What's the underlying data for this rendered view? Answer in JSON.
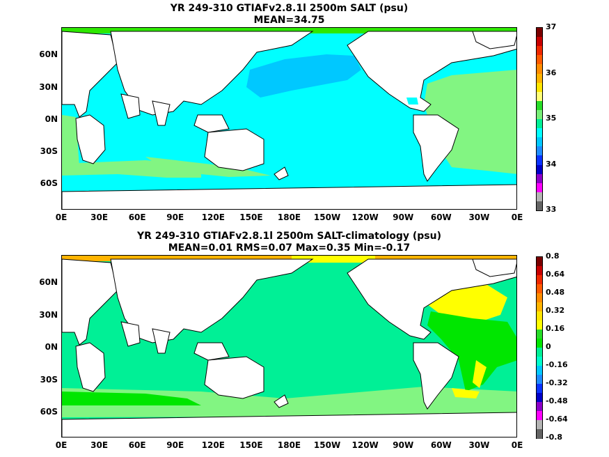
{
  "panels": [
    {
      "title_line1": "YR 249-310 GTIAFv2.8.1l 2500m SALT (psu)",
      "title_line2": "MEAN=34.75",
      "colorbar": {
        "labels": [
          "37",
          "36",
          "35",
          "34",
          "33"
        ],
        "colors": [
          "#7a0000",
          "#c80000",
          "#f02800",
          "#ff5a00",
          "#ff8c00",
          "#ffb400",
          "#ffe600",
          "#ffff78",
          "#28dc28",
          "#78f078",
          "#00f096",
          "#00ffff",
          "#00c8ff",
          "#1e8cff",
          "#0a32ff",
          "#0000c8",
          "#8c00c8",
          "#ff00ff",
          "#b4b4b4",
          "#646464"
        ]
      },
      "palette": {
        "land": "#ffffff",
        "high": "#82f582",
        "mid": "#00ffff",
        "low": "#00c8ff",
        "ice": "#2ee800"
      }
    },
    {
      "title_line1": "YR 249-310 GTIAFv2.8.1l 2500m SALT-climatology (psu)",
      "title_line2": "MEAN=0.01   RMS=0.07   Max=0.35   Min=-0.17",
      "colorbar": {
        "labels": [
          "0.8",
          "0.64",
          "0.48",
          "0.32",
          "0.16",
          "0",
          "-0.16",
          "-0.32",
          "-0.48",
          "-0.64",
          "-0.8"
        ],
        "colors": [
          "#7a0000",
          "#c80000",
          "#f02800",
          "#ff5a00",
          "#ff8c00",
          "#ffb400",
          "#ffe600",
          "#ffff00",
          "#28dc28",
          "#00e600",
          "#00f096",
          "#00ffcc",
          "#00c8ff",
          "#1e8cff",
          "#0a32ff",
          "#0000c8",
          "#8c00c8",
          "#ff00ff",
          "#b4b4b4",
          "#646464"
        ]
      },
      "palette": {
        "land": "#ffffff",
        "base": "#00f096",
        "high": "#82f582",
        "green": "#00e600",
        "yellow": "#ffff00",
        "orange": "#ffb400"
      }
    }
  ],
  "axes": {
    "y_labels": [
      "60N",
      "30N",
      "0N",
      "30S",
      "60S"
    ],
    "x_labels": [
      "0E",
      "30E",
      "60E",
      "90E",
      "120E",
      "150E",
      "180E",
      "150W",
      "120W",
      "90W",
      "60W",
      "30W",
      "0E"
    ]
  }
}
